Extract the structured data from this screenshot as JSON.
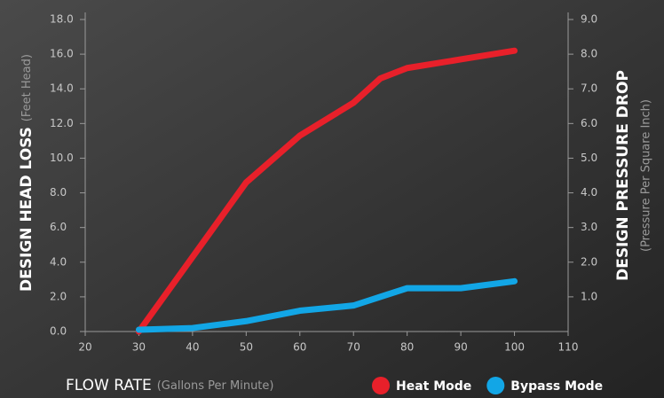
{
  "chart_data": {
    "type": "line",
    "x_label": "FLOW RATE",
    "x_label_note": "(Gallons Per Minute)",
    "y_label": "DESIGN HEAD LOSS",
    "y_label_note": "(Feet Head)",
    "y2_label": "DESIGN PRESSURE DROP",
    "y2_label_note": "(Pressure Per Square Inch)",
    "x": [
      30,
      40,
      50,
      60,
      70,
      75,
      80,
      90,
      100
    ],
    "series": [
      {
        "name": "Heat Mode",
        "color": "#e8202a",
        "values": [
          0,
          4.3,
          8.6,
          11.3,
          13.2,
          14.6,
          15.2,
          15.7,
          16.2
        ]
      },
      {
        "name": "Bypass Mode",
        "color": "#12a6e6",
        "values": [
          0.1,
          0.2,
          0.6,
          1.2,
          1.5,
          2.0,
          2.5,
          2.5,
          2.9
        ]
      }
    ],
    "xlim": [
      20,
      110
    ],
    "xticks": [
      20,
      30,
      40,
      50,
      60,
      70,
      80,
      90,
      100,
      110
    ],
    "ylim": [
      0,
      18
    ],
    "yticks": [
      {
        "value": 0,
        "label": "0.0"
      },
      {
        "value": 2,
        "label": "2.0"
      },
      {
        "value": 4,
        "label": "4.0"
      },
      {
        "value": 6,
        "label": "6.0"
      },
      {
        "value": 8,
        "label": "8.0"
      },
      {
        "value": 10,
        "label": "10.0"
      },
      {
        "value": 12,
        "label": "12.0"
      },
      {
        "value": 14,
        "label": "14.0"
      },
      {
        "value": 16,
        "label": "16.0"
      },
      {
        "value": 18,
        "label": "18.0"
      }
    ],
    "y2lim": [
      0,
      9
    ],
    "y2ticks": [
      {
        "value": 1,
        "label": "1.0"
      },
      {
        "value": 2,
        "label": "2.0"
      },
      {
        "value": 3,
        "label": "3.0"
      },
      {
        "value": 4,
        "label": "4.0"
      },
      {
        "value": 5,
        "label": "5.0"
      },
      {
        "value": 6,
        "label": "6.0"
      },
      {
        "value": 7,
        "label": "7.0"
      },
      {
        "value": 8,
        "label": "8.0"
      },
      {
        "value": 9,
        "label": "9.0"
      }
    ],
    "grid": false,
    "legend": "bottom-right"
  }
}
